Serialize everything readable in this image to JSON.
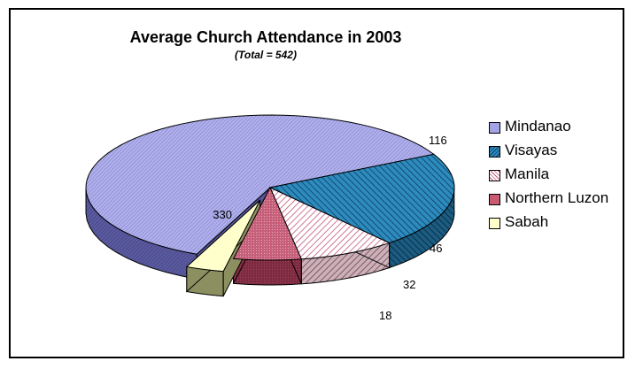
{
  "chart_data": {
    "type": "pie",
    "title": "Average Church Attendance in 2003",
    "subtitle": "(Total = 542)",
    "categories": [
      "Mindanao",
      "Visayas",
      "Manila",
      "Northern Luzon",
      "Sabah"
    ],
    "values": [
      330,
      116,
      46,
      32,
      18
    ],
    "colors": {
      "Mindanao": "#a3a3e6",
      "Visayas": "#2b86b5",
      "Manila": "#f3c8d2",
      "Northern Luzon": "#c85a72",
      "Sabah": "#ffffcc"
    },
    "legend_position": "right",
    "exploded": [
      "Sabah"
    ],
    "three_d": true
  }
}
